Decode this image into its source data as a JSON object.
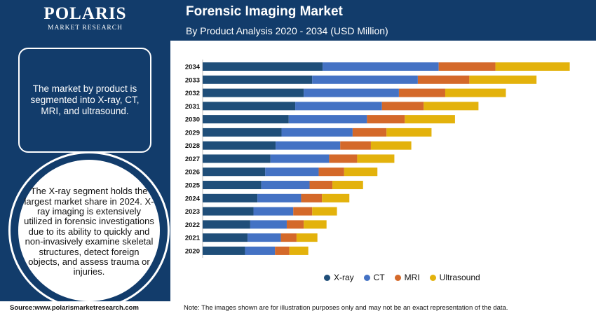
{
  "brand": {
    "name": "POLARIS",
    "tagline": "MARKET RESEARCH"
  },
  "header": {
    "title": "Forensic Imaging Market",
    "subtitle": "By Product Analysis 2020 - 2034 (USD Million)"
  },
  "sidebar": {
    "box_text": "The market by product is segmented into X-ray, CT, MRI, and ultrasound.",
    "circle_text": "The X-ray segment holds the largest market share in 2024. X-ray imaging is extensively utilized in forensic investigations due to its ability to quickly and non-invasively examine skeletal structures, detect foreign objects, and assess trauma or injuries."
  },
  "footer": {
    "source": "Source:www.polarismarketresearch.com",
    "note": "Note: The images shown are for illustration purposes only and may not be an exact representation of the data."
  },
  "colors": {
    "xray": "#1f4e79",
    "ct": "#4472c4",
    "mri": "#d4692a",
    "ultrasound": "#e3b20c",
    "navy": "#123c6b"
  },
  "chart_data": {
    "type": "bar",
    "orientation": "horizontal",
    "stacked": true,
    "categories": [
      "2034",
      "2033",
      "2032",
      "2031",
      "2030",
      "2029",
      "2028",
      "2027",
      "2026",
      "2025",
      "2024",
      "2023",
      "2022",
      "2021",
      "2020"
    ],
    "series": [
      {
        "name": "X-ray",
        "color": "#1f4e79",
        "values": [
          184,
          168,
          155,
          142,
          132,
          121,
          112,
          104,
          96,
          90,
          84,
          78,
          73,
          69,
          65
        ]
      },
      {
        "name": "CT",
        "color": "#4472c4",
        "values": [
          178,
          162,
          146,
          133,
          120,
          109,
          99,
          90,
          82,
          74,
          67,
          61,
          56,
          51,
          46
        ]
      },
      {
        "name": "MRI",
        "color": "#d4692a",
        "values": [
          87,
          79,
          71,
          64,
          58,
          52,
          47,
          43,
          39,
          35,
          32,
          29,
          26,
          24,
          22
        ]
      },
      {
        "name": "Ultrasound",
        "color": "#e3b20c",
        "values": [
          114,
          103,
          93,
          84,
          77,
          69,
          62,
          57,
          51,
          47,
          42,
          38,
          35,
          32,
          29
        ]
      }
    ],
    "legend_position": "bottom",
    "grid": false
  }
}
